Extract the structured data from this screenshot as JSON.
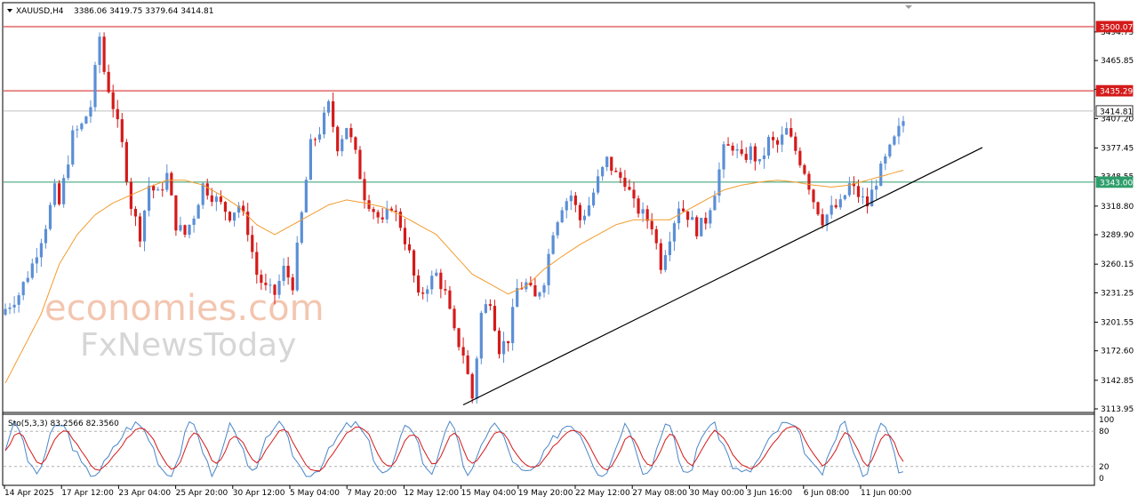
{
  "header": {
    "symbol": "XAUUSD,H4",
    "ohlc": "3386.06 3419.75 3379.64 3414.81"
  },
  "watermark": {
    "line1": "economies.com",
    "line2": "FxNewsToday"
  },
  "colors": {
    "bull": "#5b8fd6",
    "bear": "#d41a1a",
    "ma": "#f29c2f",
    "resistance": "#d41a1a",
    "support": "#2e9e6b",
    "trendline": "#000000",
    "stoch_main": "#4a86c8",
    "stoch_signal": "#d41a1a"
  },
  "chart_data": {
    "type": "candlestick",
    "symbol": "XAUUSD",
    "timeframe": "H4",
    "price_axis": {
      "ylim": [
        3113.95,
        3503.0
      ],
      "ticks": [
        "3494.75",
        "3465.85",
        "3436.8",
        "3407.20",
        "3377.45",
        "3348.55",
        "3318.80",
        "3289.90",
        "3260.15",
        "3231.25",
        "3201.55",
        "3172.60",
        "3142.85",
        "3113.95"
      ]
    },
    "x_ticks": [
      "14 Apr 2025",
      "17 Apr 12:00",
      "23 Apr 04:00",
      "25 Apr 20:00",
      "30 Apr 12:00",
      "5 May 04:00",
      "7 May 20:00",
      "12 May 12:00",
      "15 May 04:00",
      "19 May 20:00",
      "22 May 12:00",
      "27 May 08:00",
      "30 May 00:00",
      "3 Jun 16:00",
      "6 Jun 08:00",
      "11 Jun 00:00"
    ],
    "levels": [
      {
        "price": 3500.07,
        "label": "3500.07",
        "kind": "resistance"
      },
      {
        "price": 3435.29,
        "label": "3435.29",
        "kind": "resistance"
      },
      {
        "price": 3414.81,
        "label": "3414.81",
        "kind": "current"
      },
      {
        "price": 3343.0,
        "label": "3343.00",
        "kind": "support"
      }
    ],
    "trendline": {
      "from": {
        "x": "15 May 04:00",
        "price": 3118
      },
      "to": {
        "x": "after 11 Jun",
        "price": 3378
      }
    },
    "close_path": [
      [
        0,
        3215
      ],
      [
        3,
        3230
      ],
      [
        6,
        3260
      ],
      [
        9,
        3300
      ],
      [
        11,
        3335
      ],
      [
        12,
        3320
      ],
      [
        15,
        3390
      ],
      [
        17,
        3400
      ],
      [
        19,
        3420
      ],
      [
        21,
        3490
      ],
      [
        22,
        3455
      ],
      [
        24,
        3420
      ],
      [
        26,
        3380
      ],
      [
        28,
        3320
      ],
      [
        30,
        3290
      ],
      [
        32,
        3340
      ],
      [
        34,
        3330
      ],
      [
        36,
        3350
      ],
      [
        38,
        3300
      ],
      [
        40,
        3290
      ],
      [
        42,
        3310
      ],
      [
        44,
        3340
      ],
      [
        46,
        3330
      ],
      [
        48,
        3320
      ],
      [
        50,
        3310
      ],
      [
        52,
        3320
      ],
      [
        54,
        3295
      ],
      [
        56,
        3250
      ],
      [
        58,
        3235
      ],
      [
        60,
        3230
      ],
      [
        62,
        3255
      ],
      [
        64,
        3240
      ],
      [
        66,
        3310
      ],
      [
        68,
        3380
      ],
      [
        70,
        3395
      ],
      [
        72,
        3420
      ],
      [
        74,
        3380
      ],
      [
        76,
        3400
      ],
      [
        78,
        3370
      ],
      [
        80,
        3330
      ],
      [
        82,
        3315
      ],
      [
        84,
        3300
      ],
      [
        86,
        3320
      ],
      [
        88,
        3300
      ],
      [
        90,
        3270
      ],
      [
        92,
        3225
      ],
      [
        94,
        3240
      ],
      [
        96,
        3250
      ],
      [
        98,
        3230
      ],
      [
        100,
        3190
      ],
      [
        102,
        3170
      ],
      [
        104,
        3125
      ],
      [
        106,
        3210
      ],
      [
        108,
        3225
      ],
      [
        110,
        3175
      ],
      [
        112,
        3185
      ],
      [
        114,
        3235
      ],
      [
        116,
        3240
      ],
      [
        118,
        3225
      ],
      [
        120,
        3245
      ],
      [
        122,
        3295
      ],
      [
        124,
        3320
      ],
      [
        126,
        3330
      ],
      [
        128,
        3305
      ],
      [
        130,
        3320
      ],
      [
        132,
        3345
      ],
      [
        134,
        3365
      ],
      [
        136,
        3350
      ],
      [
        138,
        3345
      ],
      [
        140,
        3320
      ],
      [
        142,
        3310
      ],
      [
        144,
        3300
      ],
      [
        146,
        3260
      ],
      [
        148,
        3290
      ],
      [
        150,
        3320
      ],
      [
        152,
        3310
      ],
      [
        154,
        3295
      ],
      [
        156,
        3305
      ],
      [
        158,
        3335
      ],
      [
        160,
        3375
      ],
      [
        162,
        3380
      ],
      [
        164,
        3365
      ],
      [
        166,
        3375
      ],
      [
        168,
        3360
      ],
      [
        170,
        3385
      ],
      [
        172,
        3380
      ],
      [
        174,
        3395
      ],
      [
        176,
        3375
      ],
      [
        178,
        3355
      ],
      [
        180,
        3325
      ],
      [
        182,
        3305
      ],
      [
        184,
        3315
      ],
      [
        186,
        3320
      ],
      [
        188,
        3340
      ],
      [
        190,
        3330
      ],
      [
        192,
        3320
      ],
      [
        194,
        3345
      ],
      [
        196,
        3365
      ],
      [
        198,
        3385
      ],
      [
        200,
        3405
      ]
    ],
    "moving_average": [
      [
        0,
        3140
      ],
      [
        4,
        3175
      ],
      [
        8,
        3210
      ],
      [
        12,
        3260
      ],
      [
        16,
        3290
      ],
      [
        20,
        3310
      ],
      [
        24,
        3322
      ],
      [
        28,
        3330
      ],
      [
        32,
        3338
      ],
      [
        36,
        3345
      ],
      [
        40,
        3345
      ],
      [
        44,
        3340
      ],
      [
        48,
        3330
      ],
      [
        52,
        3318
      ],
      [
        56,
        3300
      ],
      [
        60,
        3290
      ],
      [
        64,
        3300
      ],
      [
        68,
        3310
      ],
      [
        72,
        3320
      ],
      [
        76,
        3325
      ],
      [
        80,
        3322
      ],
      [
        84,
        3318
      ],
      [
        88,
        3310
      ],
      [
        92,
        3300
      ],
      [
        96,
        3290
      ],
      [
        100,
        3270
      ],
      [
        104,
        3250
      ],
      [
        108,
        3240
      ],
      [
        112,
        3230
      ],
      [
        116,
        3238
      ],
      [
        120,
        3255
      ],
      [
        124,
        3268
      ],
      [
        128,
        3280
      ],
      [
        132,
        3290
      ],
      [
        136,
        3300
      ],
      [
        140,
        3305
      ],
      [
        144,
        3305
      ],
      [
        148,
        3305
      ],
      [
        152,
        3315
      ],
      [
        156,
        3325
      ],
      [
        160,
        3335
      ],
      [
        164,
        3340
      ],
      [
        168,
        3343
      ],
      [
        172,
        3345
      ],
      [
        176,
        3343
      ],
      [
        180,
        3340
      ],
      [
        184,
        3338
      ],
      [
        188,
        3340
      ],
      [
        192,
        3345
      ],
      [
        196,
        3350
      ],
      [
        200,
        3355
      ]
    ],
    "stochastic": {
      "label": "Sto(5,3,3) 83.2566 82.3560",
      "ylim": [
        0,
        100
      ],
      "levels": [
        80,
        20
      ],
      "ticks": [
        "100",
        "80",
        "20",
        "0"
      ]
    }
  }
}
